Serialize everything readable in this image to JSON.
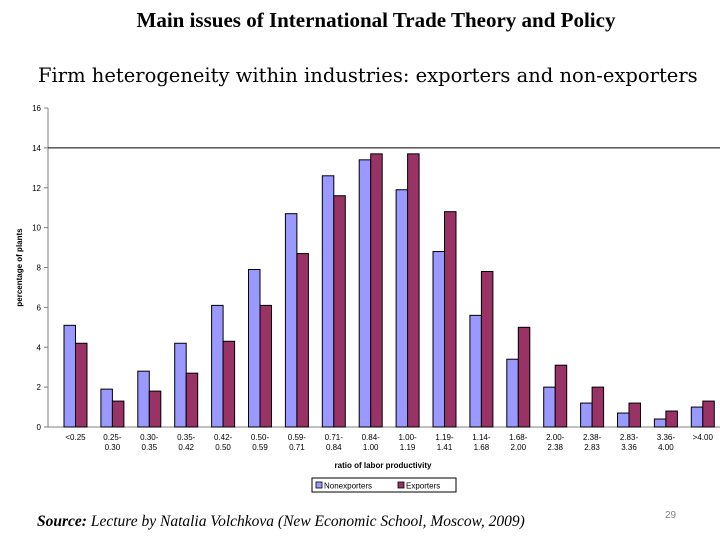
{
  "slide": {
    "title": "Main issues of International Trade Theory and Policy",
    "subtitle": "Firm heterogeneity within industries: exporters and non-exporters",
    "source_label": "Source:",
    "source_text": " Lecture by Natalia Volchkova (New Economic School, Moscow, 2009)",
    "page_number": "29"
  },
  "chart_data": {
    "type": "bar",
    "xlabel": "ratio of labor productivity",
    "ylabel": "percentage of plants",
    "ylim": [
      0,
      16
    ],
    "yticks": [
      0,
      2,
      4,
      6,
      8,
      10,
      12,
      14,
      16
    ],
    "grid": "horizontal line at 14",
    "legend_position": "bottom-center",
    "categories": [
      [
        "<0.25"
      ],
      [
        "0.25-",
        "0.30"
      ],
      [
        "0.30-",
        "0.35"
      ],
      [
        "0.35-",
        "0.42"
      ],
      [
        "0.42-",
        "0.50"
      ],
      [
        "0.50-",
        "0.59"
      ],
      [
        "0.59-",
        "0.71"
      ],
      [
        "0.71-",
        "0.84"
      ],
      [
        "0.84-",
        "1.00"
      ],
      [
        "1.00-",
        "1.19"
      ],
      [
        "1.19-",
        "1.41"
      ],
      [
        "1.14-",
        "1.68"
      ],
      [
        "1.68-",
        "2.00"
      ],
      [
        "2.00-",
        "2.38"
      ],
      [
        "2.38-",
        "2.83"
      ],
      [
        "2.83-",
        "3.36"
      ],
      [
        "3.36-",
        "4.00"
      ],
      [
        ">4.00"
      ]
    ],
    "series": [
      {
        "name": "Nonexporters",
        "color": "#9999ff",
        "values": [
          5.1,
          1.9,
          2.8,
          4.2,
          6.1,
          7.9,
          10.7,
          12.6,
          13.4,
          11.9,
          8.8,
          5.6,
          3.4,
          2.0,
          1.2,
          0.7,
          0.4,
          1.0
        ]
      },
      {
        "name": "Exporters",
        "color": "#993366",
        "values": [
          4.2,
          1.3,
          1.8,
          2.7,
          4.3,
          6.1,
          8.7,
          11.6,
          13.7,
          13.7,
          10.8,
          7.8,
          5.0,
          3.1,
          2.0,
          1.2,
          0.8,
          1.3
        ]
      }
    ]
  }
}
